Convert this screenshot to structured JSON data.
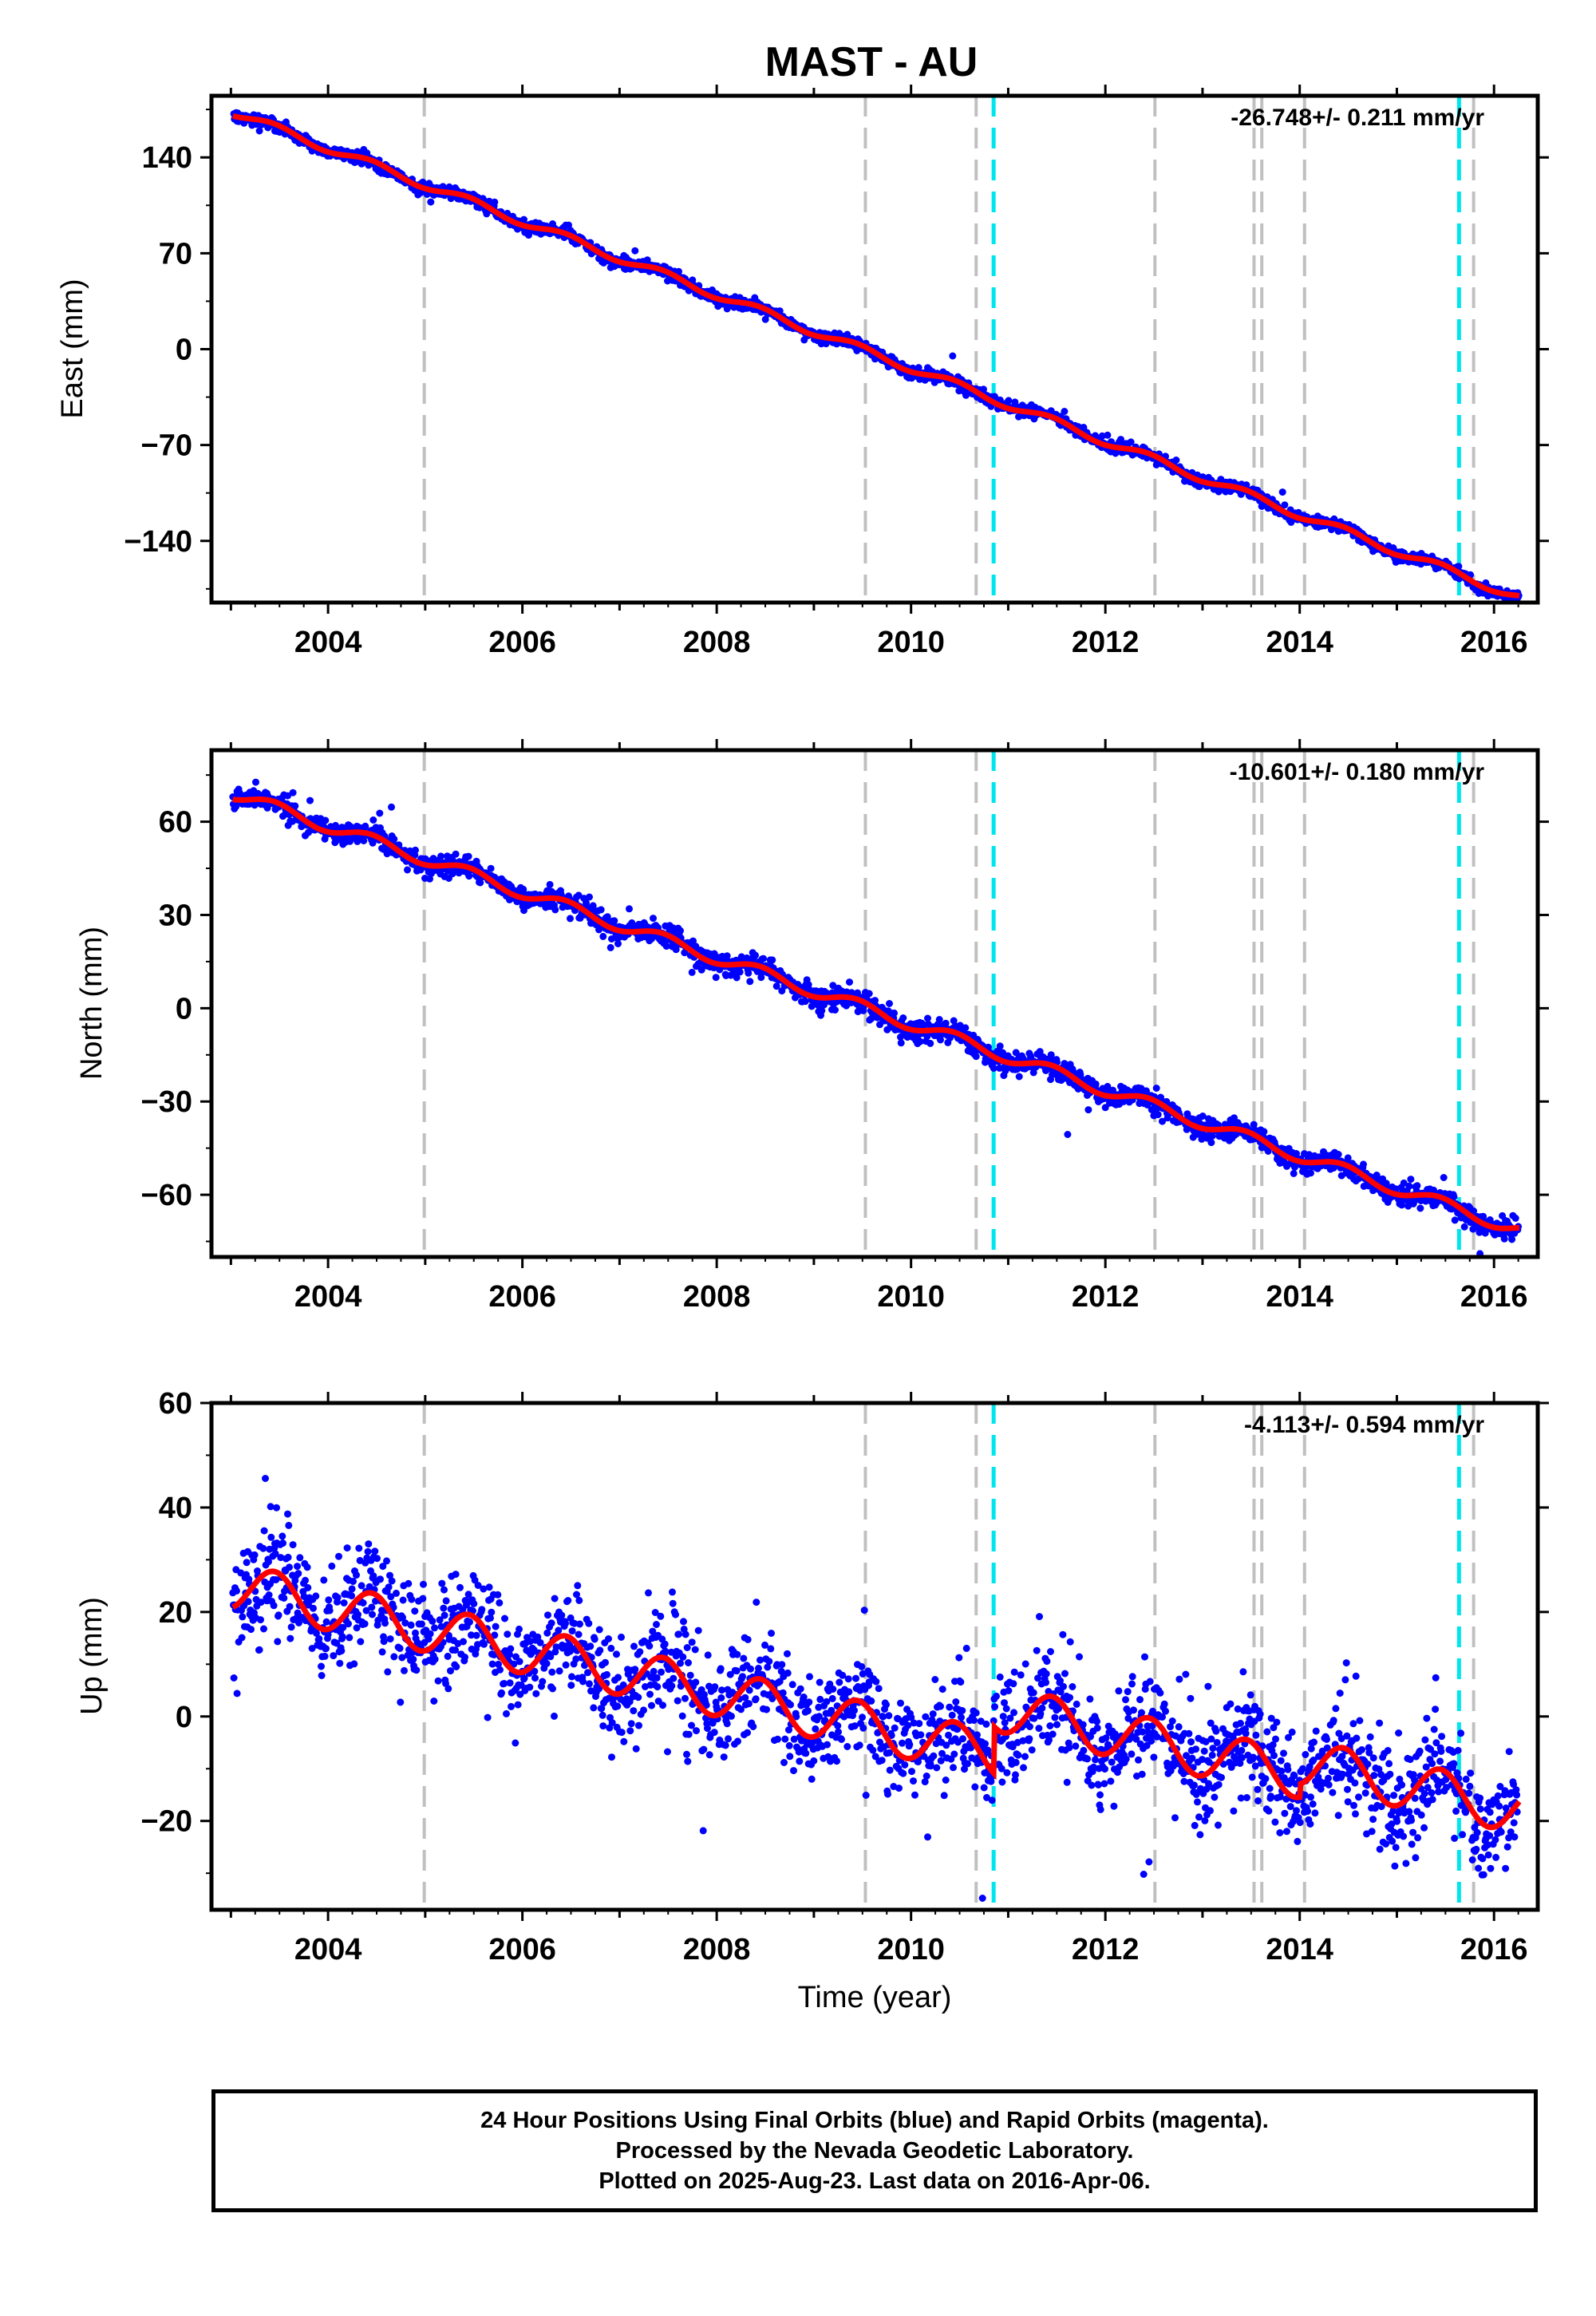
{
  "title": "MAST - AU",
  "xlabel": "Time (year)",
  "footer": {
    "line1": "24 Hour Positions Using Final Orbits (blue) and Rapid Orbits (magenta).",
    "line2": "Processed by the Nevada Geodetic Laboratory.",
    "line3": "Plotted on 2025-Aug-23. Last data on 2016-Apr-06."
  },
  "colors": {
    "final_orbits": "#0000ff",
    "model_fit": "#ff0000",
    "equipment_change": "#c0c0c0",
    "earthquake": "#00e5ee"
  },
  "chart_data": [
    {
      "type": "scatter",
      "component": "East",
      "ylabel": "East (mm)",
      "rate_text": "-26.748+/- 0.211 mm/yr",
      "xlim": [
        2002.8,
        2016.45
      ],
      "ylim": [
        -185,
        185
      ],
      "yticks": [
        -140,
        -70,
        0,
        70,
        140
      ],
      "xticks": [
        2004,
        2006,
        2008,
        2010,
        2012,
        2014,
        2016
      ],
      "grid": false,
      "series": [
        {
          "name": "Final Orbits",
          "values_desc": "daily positions",
          "model": {
            "start_x": 2003.02,
            "start_y": 173,
            "rate": -26.748,
            "annual_amp": 3,
            "noise": 2.2
          }
        },
        {
          "name": "Model fit",
          "values_desc": "trend + seasonal"
        }
      ]
    },
    {
      "type": "scatter",
      "component": "North",
      "ylabel": "North (mm)",
      "rate_text": "-10.601+/- 0.180 mm/yr",
      "xlim": [
        2002.8,
        2016.45
      ],
      "ylim": [
        -80,
        83
      ],
      "yticks": [
        -60,
        -30,
        0,
        30,
        60
      ],
      "xticks": [
        2004,
        2006,
        2008,
        2010,
        2012,
        2014,
        2016
      ],
      "grid": false,
      "series": [
        {
          "name": "Final Orbits",
          "model": {
            "start_x": 2003.02,
            "start_y": 69,
            "rate": -10.601,
            "annual_amp": 2,
            "noise": 1.7
          }
        },
        {
          "name": "Model fit"
        }
      ]
    },
    {
      "type": "scatter",
      "component": "Up",
      "ylabel": "Up (mm)",
      "rate_text": "-4.113+/- 0.594 mm/yr",
      "xlim": [
        2002.8,
        2016.45
      ],
      "ylim": [
        -37,
        60
      ],
      "yticks": [
        -20,
        0,
        20,
        40,
        60
      ],
      "xticks": [
        2004,
        2006,
        2008,
        2010,
        2012,
        2014,
        2016
      ],
      "grid": false,
      "series": [
        {
          "name": "Final Orbits",
          "model": {
            "start_x": 2003.02,
            "start_y": 25,
            "rate": -4.113,
            "annual_amp": 4.5,
            "noise": 5.0
          }
        },
        {
          "name": "Model fit"
        }
      ]
    }
  ],
  "equipment_changes": [
    2004.99,
    2009.53,
    2010.67,
    2012.51,
    2013.53,
    2013.61,
    2014.05,
    2015.79
  ],
  "earthquakes": [
    2010.85,
    2015.64
  ],
  "data_start": 2003.02,
  "data_end": 2016.26
}
